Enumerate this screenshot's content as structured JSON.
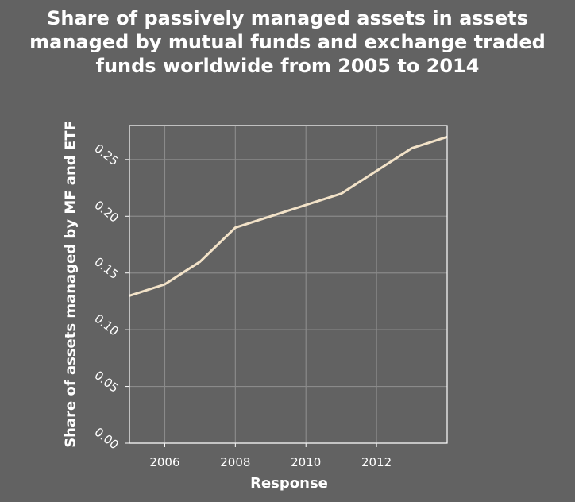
{
  "chart_data": {
    "type": "line",
    "title_lines": [
      "Share of passively managed assets in assets",
      "managed by mutual funds and exchange traded",
      "funds worldwide from 2005 to 2014"
    ],
    "xlabel": "Response",
    "ylabel": "Share of assets managed by MF and ETF",
    "x_ticks": [
      "2006",
      "2008",
      "2010",
      "2012"
    ],
    "y_ticks": [
      "0.00",
      "0.05",
      "0.10",
      "0.15",
      "0.20",
      "0.25"
    ],
    "xlim": [
      2005,
      2014
    ],
    "ylim": [
      0,
      0.28
    ],
    "grid": true,
    "series": [
      {
        "x": [
          2005,
          2006,
          2007,
          2008,
          2009,
          2010,
          2011,
          2012,
          2013,
          2014
        ],
        "values": [
          0.13,
          0.14,
          0.16,
          0.19,
          0.2,
          0.21,
          0.22,
          0.24,
          0.26,
          0.27
        ]
      }
    ],
    "colors": {
      "background": "#626262",
      "line": "#f2e2c8",
      "grid": "#8a8a8a",
      "frame": "#ffffff",
      "text": "#ffffff"
    }
  }
}
